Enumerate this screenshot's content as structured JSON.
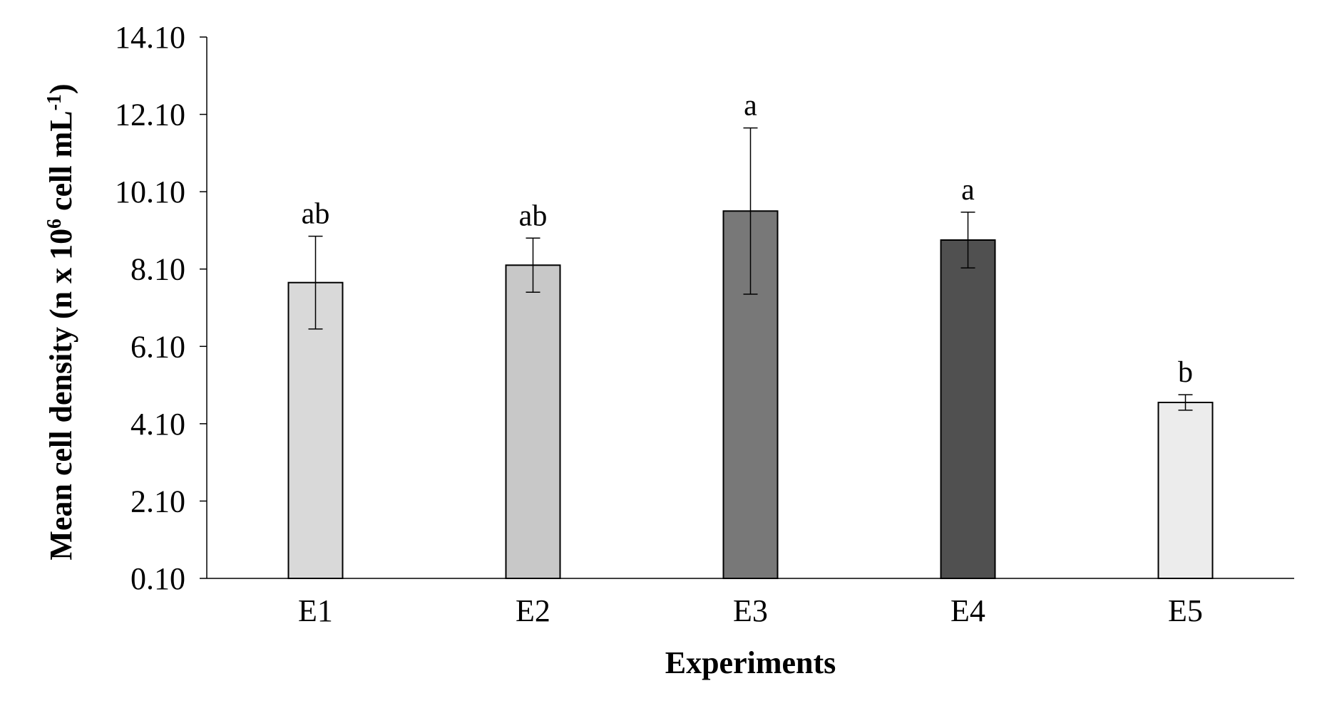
{
  "chart_data": {
    "type": "bar",
    "xlabel": "Experiments",
    "ylabel": {
      "prefix": "Mean cell density (n x 10",
      "sup1": "6",
      "middle": " cell mL",
      "sup2": "-1",
      "suffix": ")"
    },
    "categories": [
      "E1",
      "E2",
      "E3",
      "E4",
      "E5"
    ],
    "values": [
      7.75,
      8.2,
      9.6,
      8.85,
      4.65
    ],
    "errors": [
      1.2,
      0.7,
      2.15,
      0.72,
      0.2
    ],
    "significance": [
      "ab",
      "ab",
      "a",
      "a",
      "b"
    ],
    "bar_colors": [
      "#d9d9d9",
      "#c8c8c8",
      "#787878",
      "#505050",
      "#ececec"
    ],
    "ylim": [
      0.1,
      14.1
    ],
    "yticks": [
      "0.10",
      "2.10",
      "4.10",
      "6.10",
      "8.10",
      "10.10",
      "12.10",
      "14.10"
    ],
    "grid": false,
    "legend": "none"
  }
}
